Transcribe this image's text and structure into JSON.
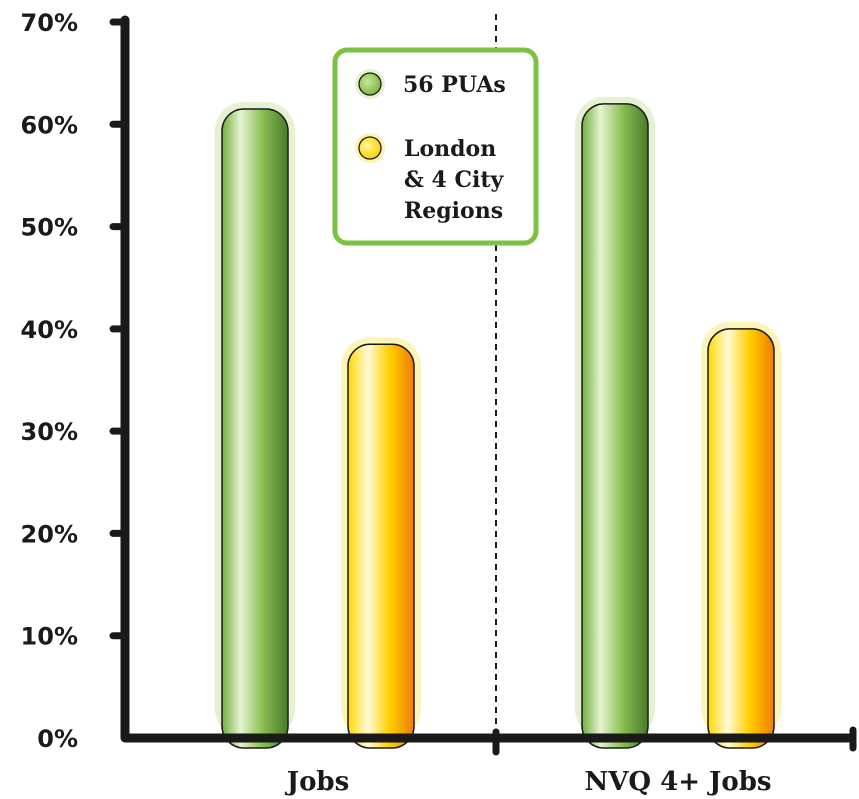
{
  "chart_data": {
    "type": "bar",
    "categories": [
      "Jobs",
      "NVQ 4+ Jobs"
    ],
    "series": [
      {
        "name": "56 PUAs",
        "values": [
          61.5,
          62.0
        ],
        "color": "#8cc63f"
      },
      {
        "name": "London & 4 City Regions",
        "name_lines": [
          "London",
          "& 4 City",
          "Regions"
        ],
        "values": [
          38.5,
          40.0
        ],
        "color": "#ffd400"
      }
    ],
    "ylim": [
      0,
      70
    ],
    "yticks": [
      0,
      10,
      20,
      30,
      40,
      50,
      60,
      70
    ],
    "ytick_labels": [
      "0%",
      "10%",
      "20%",
      "30%",
      "40%",
      "50%",
      "60%",
      "70%"
    ],
    "title": "",
    "xlabel": "",
    "ylabel": "",
    "grid": false,
    "legend_position": "top-center",
    "legend_border_color": "#7dc142",
    "axis_color": "#1a1a1a"
  }
}
